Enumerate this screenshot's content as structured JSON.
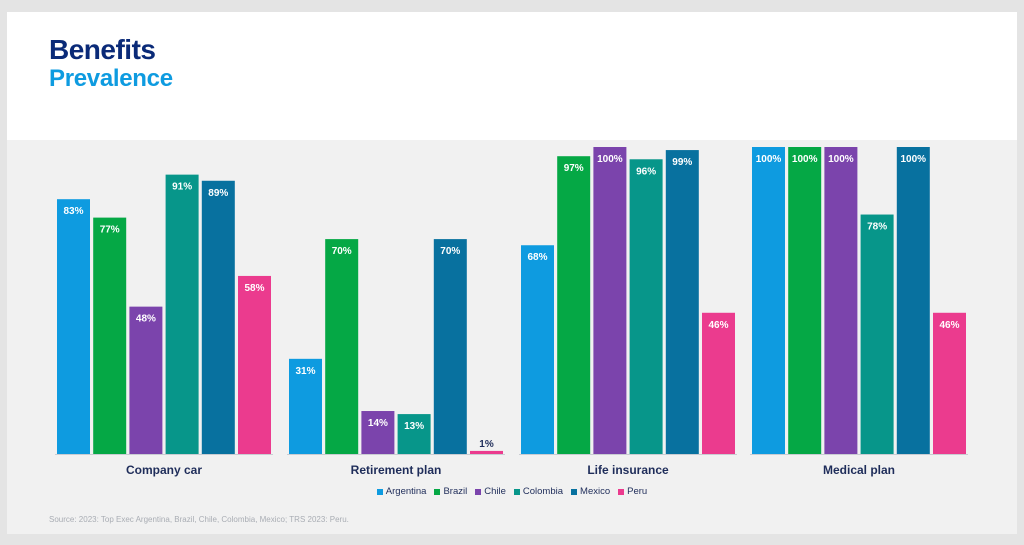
{
  "title": {
    "line1": "Benefits",
    "line2": "Prevalence"
  },
  "source": "Source: 2023: Top Exec Argentina, Brazil, Chile, Colombia, Mexico; TRS 2023: Peru.",
  "chart_data": {
    "type": "bar",
    "categories": [
      "Company car",
      "Retirement plan",
      "Life insurance",
      "Medical plan"
    ],
    "series": [
      {
        "name": "Argentina",
        "color": "#0e9be0",
        "values": [
          83,
          31,
          68,
          100
        ]
      },
      {
        "name": "Brazil",
        "color": "#05a845",
        "values": [
          77,
          70,
          97,
          100
        ]
      },
      {
        "name": "Chile",
        "color": "#7b44ac",
        "values": [
          48,
          14,
          100,
          100
        ]
      },
      {
        "name": "Colombia",
        "color": "#07968a",
        "values": [
          91,
          13,
          96,
          78
        ]
      },
      {
        "name": "Mexico",
        "color": "#08719f",
        "values": [
          89,
          70,
          99,
          100
        ]
      },
      {
        "name": "Peru",
        "color": "#eb3b8e",
        "values": [
          58,
          1,
          46,
          46
        ]
      }
    ],
    "value_suffix": "%",
    "ylim": [
      0,
      100
    ],
    "grid": false,
    "legend_position": "bottom-center"
  }
}
